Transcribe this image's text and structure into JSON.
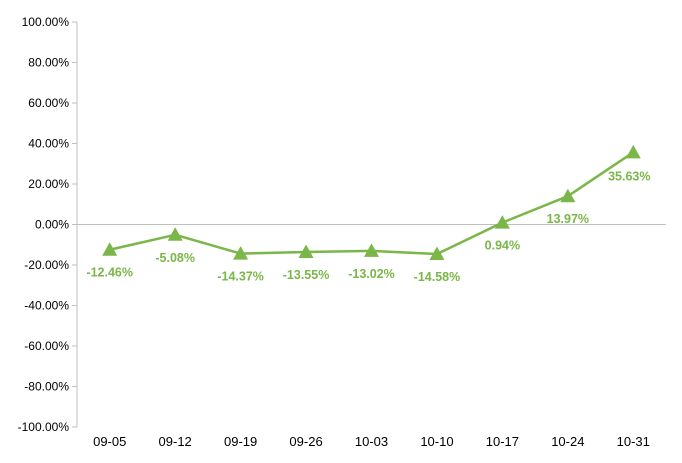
{
  "chart_data": {
    "type": "line",
    "categories": [
      "09-05",
      "09-12",
      "09-19",
      "09-26",
      "10-03",
      "10-10",
      "10-17",
      "10-24",
      "10-31"
    ],
    "series": [
      {
        "values": [
          -12.46,
          -5.08,
          -14.37,
          -13.55,
          -13.02,
          -14.58,
          0.94,
          13.97,
          35.63
        ],
        "labels": [
          "-12.46%",
          "-5.08%",
          "-14.37%",
          "-13.55%",
          "-13.02%",
          "-14.58%",
          "0.94%",
          "13.97%",
          "35.63%"
        ],
        "color": "#7ab648",
        "marker": "triangle"
      }
    ],
    "y_ticks": [
      "100.00%",
      "80.00%",
      "60.00%",
      "40.00%",
      "20.00%",
      "0.00%",
      "-20.00%",
      "-40.00%",
      "-60.00%",
      "-80.00%",
      "-100.00%"
    ],
    "ylim": [
      -100,
      100
    ],
    "y_step": 20,
    "grid": false,
    "axis_color": "#bfbfbf",
    "legend": "none"
  }
}
